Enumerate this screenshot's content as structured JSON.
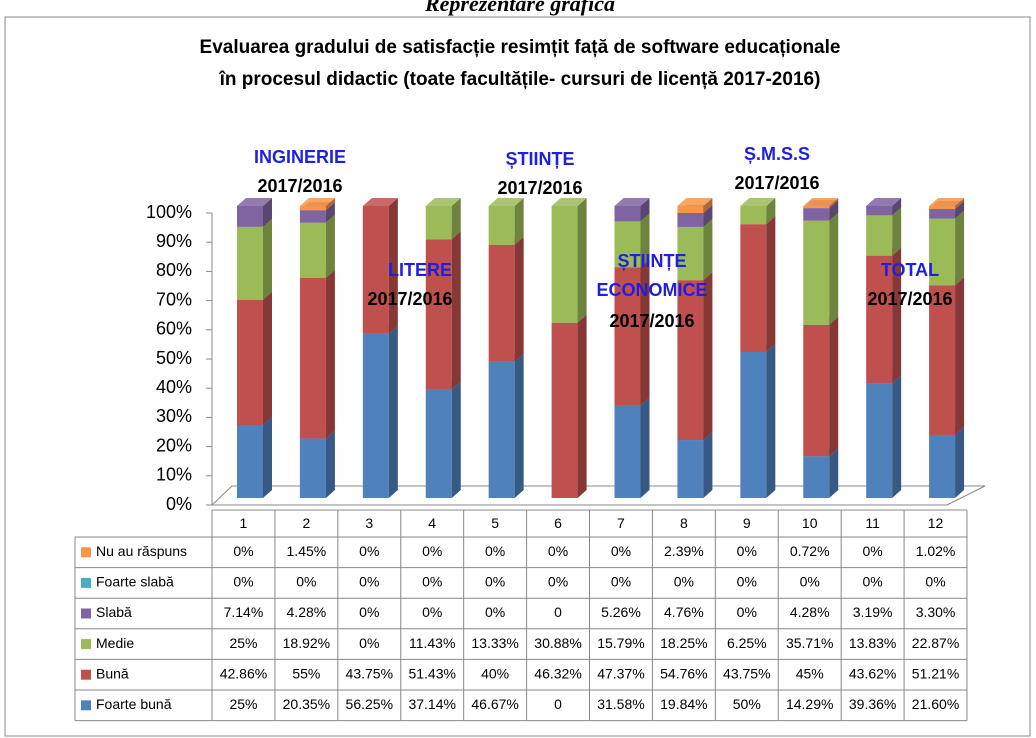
{
  "chart_data": {
    "type": "bar",
    "stacking": "percent",
    "header": "Reprezentare grafică",
    "title": [
      "Evaluarea gradului de satisfacție resimțit față de  software educaționale",
      "în procesul didactic (toate facultățile- cursuri de licență 2017-2016)"
    ],
    "categories": [
      "1",
      "2",
      "3",
      "4",
      "5",
      "6",
      "7",
      "8",
      "9",
      "10",
      "11",
      "12"
    ],
    "ylim": [
      0,
      100
    ],
    "yticks": [
      {
        "value": 0,
        "label": "0%"
      },
      {
        "value": 10,
        "label": "10%"
      },
      {
        "value": 20,
        "label": "20%"
      },
      {
        "value": 30,
        "label": "30%"
      },
      {
        "value": 40,
        "label": "40%"
      },
      {
        "value": 50,
        "label": "50%"
      },
      {
        "value": 60,
        "label": "60%"
      },
      {
        "value": 70,
        "label": "70%"
      },
      {
        "value": 80,
        "label": "80%"
      },
      {
        "value": 90,
        "label": "90%"
      },
      {
        "value": 100,
        "label": "100%"
      }
    ],
    "series": [
      {
        "name": "Foarte bună",
        "color": "#4f81bd",
        "values": [
          25,
          20.35,
          56.25,
          37.14,
          46.67,
          0,
          31.58,
          19.84,
          50,
          14.29,
          39.36,
          21.6
        ],
        "value_labels": [
          "25%",
          "20.35%",
          "56.25%",
          "37.14%",
          "46.67%",
          "0",
          "31.58%",
          "19.84%",
          "50%",
          "14.29%",
          "39.36%",
          "21.60%"
        ]
      },
      {
        "name": "Bună",
        "color": "#c0504d",
        "values": [
          42.86,
          55,
          43.75,
          51.43,
          40,
          46.32,
          47.37,
          54.76,
          43.75,
          45,
          43.62,
          51.21
        ],
        "value_labels": [
          "42.86%",
          "55%",
          "43.75%",
          "51.43%",
          "40%",
          "46.32%",
          "47.37%",
          "54.76%",
          "43.75%",
          "45%",
          "43.62%",
          "51.21%"
        ]
      },
      {
        "name": "Medie",
        "color": "#9bbb59",
        "values": [
          25,
          18.92,
          0,
          11.43,
          13.33,
          30.88,
          15.79,
          18.25,
          6.25,
          35.71,
          13.83,
          22.87
        ],
        "value_labels": [
          "25%",
          "18.92%",
          "0%",
          "11.43%",
          "13.33%",
          "30.88%",
          "15.79%",
          "18.25%",
          "6.25%",
          "35.71%",
          "13.83%",
          "22.87%"
        ]
      },
      {
        "name": "Slabă",
        "color": "#8064a2",
        "values": [
          7.14,
          4.28,
          0,
          0,
          0,
          0,
          5.26,
          4.76,
          0,
          4.28,
          3.19,
          3.3
        ],
        "value_labels": [
          "7.14%",
          "4.28%",
          "0%",
          "0%",
          "0%",
          "0",
          "5.26%",
          "4.76%",
          "0%",
          "4.28%",
          "3.19%",
          "3.30%"
        ]
      },
      {
        "name": "Foarte slabă",
        "color": "#4bacc6",
        "values": [
          0,
          0,
          0,
          0,
          0,
          0,
          0,
          0,
          0,
          0,
          0,
          0
        ],
        "value_labels": [
          "0%",
          "0%",
          "0%",
          "0%",
          "0%",
          "0%",
          "0%",
          "0%",
          "0%",
          "0%",
          "0%",
          "0%"
        ]
      },
      {
        "name": "Nu au răspuns",
        "color": "#f79646",
        "values": [
          0,
          1.45,
          0,
          0,
          0,
          0,
          0,
          2.39,
          0,
          0.72,
          0,
          1.02
        ],
        "value_labels": [
          "0%",
          "1.45%",
          "0%",
          "0%",
          "0%",
          "0%",
          "0%",
          "2.39%",
          "0%",
          "0.72%",
          "0%",
          "1.02%"
        ]
      }
    ],
    "annotations": [
      {
        "name": [
          "INGINERIE"
        ],
        "period": "2017/2016"
      },
      {
        "name": [
          "LITERE"
        ],
        "period": "2017/2016"
      },
      {
        "name": [
          "ȘTIINȚE"
        ],
        "period": "2017/2016"
      },
      {
        "name": [
          "ȘTIINȚE",
          "ECONOMICE"
        ],
        "period": "2017/2016"
      },
      {
        "name": [
          "Ș.M.S.S"
        ],
        "period": "2017/2016"
      },
      {
        "name": [
          "TOTAL"
        ],
        "period": "2017/2016"
      }
    ]
  }
}
